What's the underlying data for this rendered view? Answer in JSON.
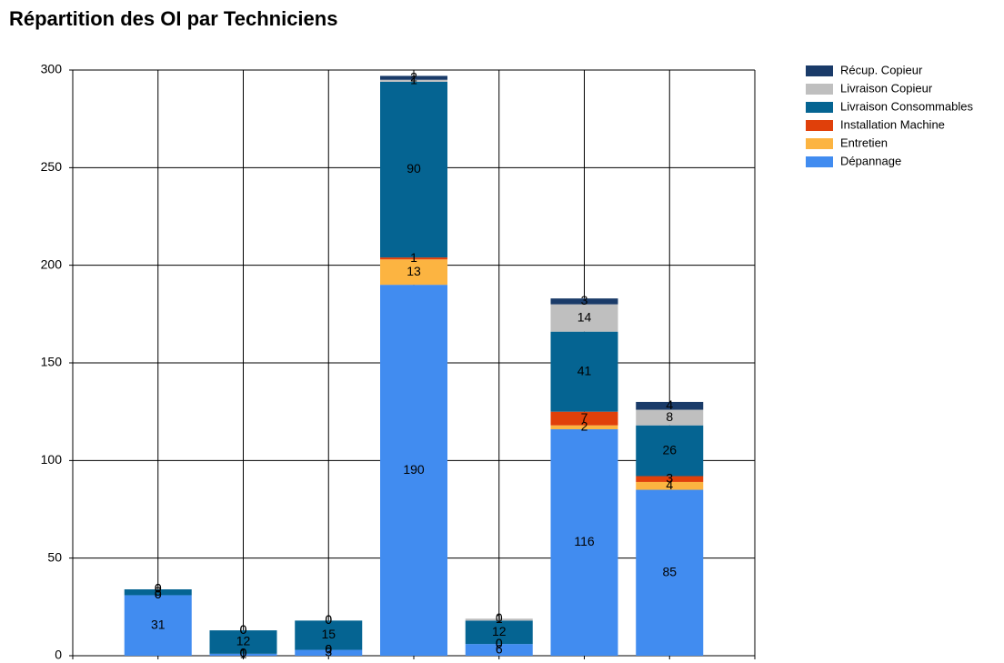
{
  "chart_data": {
    "type": "stacked_bar",
    "title": "Répartition des OI par Techniciens",
    "categories": [
      null,
      null,
      null,
      null,
      null,
      null,
      null
    ],
    "series": [
      {
        "name": "Dépannage",
        "color": "#418cf0",
        "values": [
          31,
          1,
          3,
          190,
          6,
          116,
          85
        ]
      },
      {
        "name": "Entretien",
        "color": "#fcb441",
        "values": [
          0,
          0,
          0,
          13,
          0,
          2,
          4
        ]
      },
      {
        "name": "Installation Machine",
        "color": "#e0400a",
        "values": [
          0,
          0,
          0,
          1,
          0,
          7,
          3
        ]
      },
      {
        "name": "Livraison Consommables",
        "color": "#056492",
        "values": [
          3,
          12,
          15,
          90,
          12,
          41,
          26
        ]
      },
      {
        "name": "Livraison Copieur",
        "color": "#bfbfbf",
        "values": [
          0,
          0,
          0,
          1,
          1,
          14,
          8
        ]
      },
      {
        "name": "Récup. Copieur",
        "color": "#1a3b69",
        "values": [
          0,
          0,
          0,
          2,
          0,
          3,
          4
        ]
      }
    ],
    "ylim": [
      0,
      300
    ],
    "yticks": [
      0,
      50,
      100,
      150,
      200,
      250,
      300
    ],
    "grid": true,
    "legend": "right"
  }
}
